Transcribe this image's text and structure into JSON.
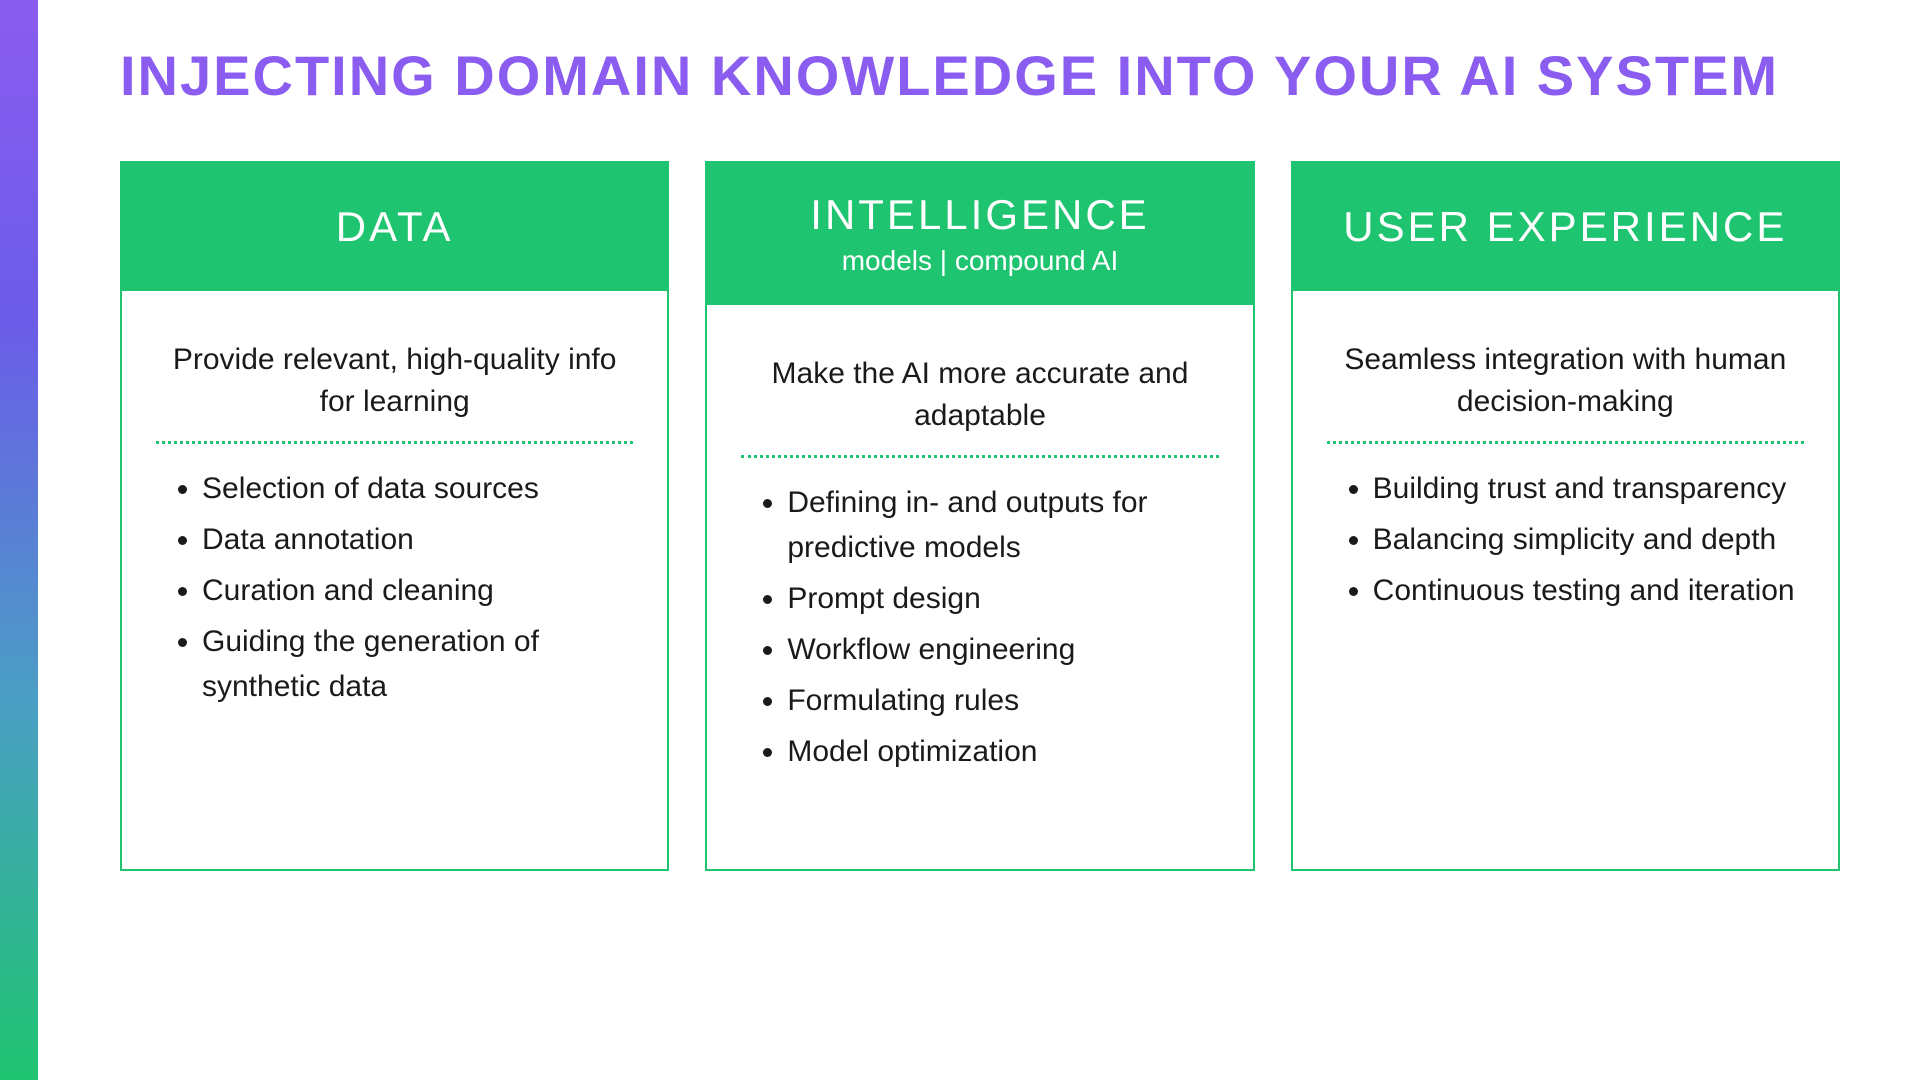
{
  "styling": {
    "background_color": "#ffffff",
    "title_color": "#8a5cf0",
    "title_fontsize": 56,
    "title_fontweight": 700,
    "title_letter_spacing": 2,
    "accent_gradient_stops": [
      "#8a5cf0",
      "#6b5ce8",
      "#4a9fc5",
      "#1fc470"
    ],
    "card_border_color": "#1fc470",
    "card_border_width": 2,
    "card_header_bg": "#1fc470",
    "card_header_text_color": "#ffffff",
    "card_header_title_fontsize": 42,
    "card_header_subtitle_fontsize": 28,
    "body_text_color": "#1a1a1a",
    "summary_fontsize": 30,
    "list_fontsize": 30,
    "divider_color": "#1fc470",
    "divider_style": "dotted",
    "card_gap": 36,
    "card_min_height": 710
  },
  "title": "INJECTING DOMAIN KNOWLEDGE INTO YOUR AI SYSTEM",
  "cards": [
    {
      "header_title": "DATA",
      "header_subtitle": "",
      "summary": "Provide relevant, high-quality info for learning",
      "bullets": [
        "Selection of data sources",
        "Data annotation",
        "Curation and cleaning",
        "Guiding the generation of synthetic data"
      ]
    },
    {
      "header_title": "INTELLIGENCE",
      "header_subtitle": "models | compound AI",
      "summary": "Make the AI more accurate and adaptable",
      "bullets": [
        "Defining in- and outputs for predictive models",
        "Prompt design",
        "Workflow engineering",
        "Formulating rules",
        "Model optimization"
      ]
    },
    {
      "header_title": "USER EXPERIENCE",
      "header_subtitle": "",
      "summary": "Seamless integration with human decision-making",
      "bullets": [
        "Building trust and transparency",
        "Balancing simplicity and depth",
        "Continuous testing and iteration"
      ]
    }
  ]
}
